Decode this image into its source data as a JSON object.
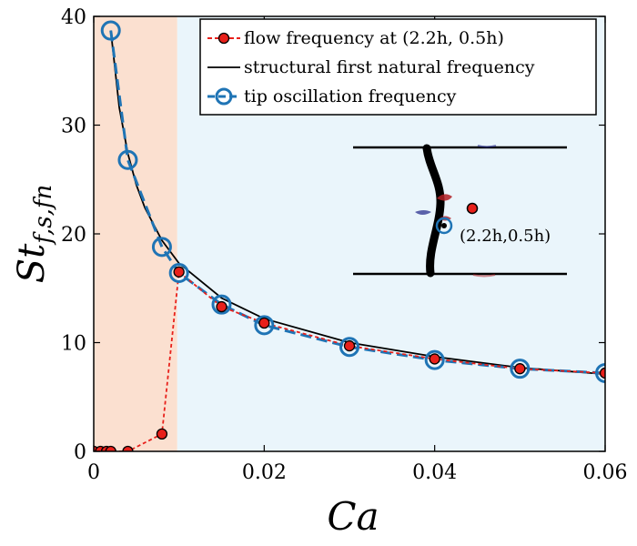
{
  "chart_data": {
    "type": "line",
    "xlabel": "Ca",
    "ylabel": "St",
    "ylabel_sub": "f,s,fn",
    "xlim": [
      0,
      0.06
    ],
    "ylim": [
      0,
      40
    ],
    "x_ticks": [
      0,
      0.02,
      0.04,
      0.06
    ],
    "x_tick_labels": [
      "0",
      "0.02",
      "0.04",
      "0.06"
    ],
    "y_ticks": [
      0,
      10,
      20,
      30,
      40
    ],
    "y_tick_labels": [
      "0",
      "10",
      "20",
      "30",
      "40"
    ],
    "shaded_regions": [
      {
        "x_range": [
          0,
          0.0098
        ],
        "color": "#fbe0d0"
      },
      {
        "x_range": [
          0.0098,
          0.06
        ],
        "color": "#eaf5fb"
      }
    ],
    "legend_position": "top-right",
    "series": [
      {
        "name": "flow frequency at (2.2h, 0.5h)",
        "color": "#e8201a",
        "style": "dashed-dotted-with-markers",
        "x": [
          0,
          0.0008,
          0.0015,
          0.002,
          0.004,
          0.008,
          0.01,
          0.015,
          0.02,
          0.03,
          0.04,
          0.05,
          0.06
        ],
        "y": [
          0,
          0,
          0,
          0,
          0,
          1.6,
          16.5,
          13.3,
          11.8,
          9.7,
          8.5,
          7.6,
          7.2
        ]
      },
      {
        "name": "structural first natural frequency",
        "color": "#000000",
        "style": "solid",
        "x": [
          0.002,
          0.003,
          0.004,
          0.005,
          0.006,
          0.008,
          0.01,
          0.015,
          0.02,
          0.03,
          0.04,
          0.05,
          0.06
        ],
        "y": [
          38.7,
          31.6,
          27.4,
          24.5,
          22.4,
          19.4,
          17.3,
          14.1,
          12.2,
          10.0,
          8.7,
          7.7,
          7.1
        ]
      },
      {
        "name": "tip oscillation frequency",
        "color": "#1f74b5",
        "style": "dashed-with-circles",
        "x": [
          0.002,
          0.004,
          0.008,
          0.01,
          0.015,
          0.02,
          0.03,
          0.04,
          0.05,
          0.06
        ],
        "y": [
          38.7,
          26.8,
          18.8,
          16.4,
          13.5,
          11.6,
          9.6,
          8.4,
          7.6,
          7.2
        ]
      }
    ],
    "inset": {
      "label": "(2.2h,0.5h)",
      "probe_color": "#e8201a"
    }
  }
}
